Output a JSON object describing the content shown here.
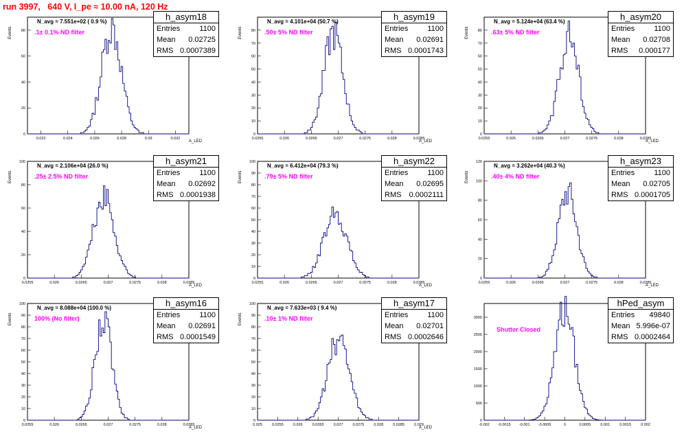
{
  "title": "run 3997,   640 V, I_pe ≈ 10.00 nA, 120 Hz",
  "chart_data": [
    {
      "type": "bar",
      "name": "h_asym18",
      "annotation": "N_avg = 7.551e+02 ( 0.9 %)",
      "label": ".1± 0.1% ND filter",
      "stats": {
        "entries": "1100",
        "mean": "0.02725",
        "rms": "0.0007389"
      },
      "ylabel": "Events",
      "xlabel": "A_LED",
      "xlim": [
        0.021,
        0.033
      ],
      "ylim": [
        0,
        90
      ],
      "xticks": [
        0.022,
        0.024,
        0.026,
        0.028,
        0.03,
        0.032
      ],
      "xtick_labels": [
        "0.022",
        "0.024",
        "0.026",
        "0.028",
        "0.03",
        "0.032"
      ],
      "yticks": [
        0,
        20,
        40,
        60,
        80
      ],
      "mean": 0.02725,
      "rms": 0.0007389,
      "peak": 82,
      "entries": 1100
    },
    {
      "type": "bar",
      "name": "h_asym19",
      "annotation": "N_avg = 4.101e+04 (50.7 %)",
      "label": ".50± 5% ND filter",
      "stats": {
        "entries": "1100",
        "mean": "0.02691",
        "rms": "0.0001743"
      },
      "ylabel": "Events",
      "xlabel": "A_LED",
      "xlim": [
        0.0255,
        0.0285
      ],
      "ylim": [
        0,
        90
      ],
      "xticks": [
        0.0255,
        0.026,
        0.0265,
        0.027,
        0.0275,
        0.028,
        0.0285
      ],
      "xtick_labels": [
        "0.0255",
        "0.026",
        "0.0265",
        "0.027",
        "0.0275",
        "0.028",
        "0.0285"
      ],
      "yticks": [
        0,
        10,
        20,
        30,
        40,
        50,
        60,
        70,
        80
      ],
      "mean": 0.02691,
      "rms": 0.0001743,
      "peak": 79,
      "entries": 1100
    },
    {
      "type": "bar",
      "name": "h_asym20",
      "annotation": "N_avg = 5.124e+04 (63.4 %)",
      "label": ".63± 5% ND filter",
      "stats": {
        "entries": "1100",
        "mean": "0.02708",
        "rms": "0.000177"
      },
      "ylabel": "Events",
      "xlabel": "A_LED",
      "xlim": [
        0.0255,
        0.0285
      ],
      "ylim": [
        0,
        90
      ],
      "xticks": [
        0.0255,
        0.026,
        0.0265,
        0.027,
        0.0275,
        0.028,
        0.0285
      ],
      "xtick_labels": [
        "0.0255",
        "0.026",
        "0.0265",
        "0.027",
        "0.0275",
        "0.028",
        "0.0285"
      ],
      "yticks": [
        0,
        10,
        20,
        30,
        40,
        50,
        60,
        70,
        80
      ],
      "mean": 0.02708,
      "rms": 0.000177,
      "peak": 76,
      "entries": 1100
    },
    {
      "type": "bar",
      "name": "h_asym21",
      "annotation": "N_avg = 2.106e+04 (26.0 %)",
      "label": ".25± 2.5% ND filter",
      "stats": {
        "entries": "1100",
        "mean": "0.02692",
        "rms": "0.0001938"
      },
      "ylabel": "Events",
      "xlabel": "A_LED",
      "xlim": [
        0.0255,
        0.0285
      ],
      "ylim": [
        0,
        100
      ],
      "xticks": [
        0.0255,
        0.026,
        0.0265,
        0.027,
        0.0275,
        0.028,
        0.0285
      ],
      "xtick_labels": [
        "0.0255",
        "0.026",
        "0.0265",
        "0.027",
        "0.0275",
        "0.028",
        "0.0285"
      ],
      "yticks": [
        0,
        20,
        40,
        60,
        80,
        100
      ],
      "mean": 0.02692,
      "rms": 0.0001938,
      "peak": 70,
      "entries": 1100
    },
    {
      "type": "bar",
      "name": "h_asym22",
      "annotation": "N_avg = 6.412e+04 (79.3 %)",
      "label": ".79± 5% ND filter",
      "stats": {
        "entries": "1100",
        "mean": "0.02695",
        "rms": "0.0002111"
      },
      "ylabel": "Events",
      "xlabel": "A_LED",
      "xlim": [
        0.0255,
        0.0285
      ],
      "ylim": [
        0,
        100
      ],
      "xticks": [
        0.0255,
        0.026,
        0.0265,
        0.027,
        0.0275,
        0.028,
        0.0285
      ],
      "xtick_labels": [
        "0.0255",
        "0.026",
        "0.0265",
        "0.027",
        "0.0275",
        "0.028",
        "0.0285"
      ],
      "yticks": [
        0,
        10,
        20,
        30,
        40,
        50,
        60,
        70,
        80,
        90,
        100
      ],
      "mean": 0.02695,
      "rms": 0.0002111,
      "peak": 57,
      "entries": 1100
    },
    {
      "type": "bar",
      "name": "h_asym23",
      "annotation": "N_avg = 3.262e+04 (40.3 %)",
      "label": ".40± 4% ND filter",
      "stats": {
        "entries": "1100",
        "mean": "0.02705",
        "rms": "0.0001705"
      },
      "ylabel": "Events",
      "xlabel": "A_LED",
      "xlim": [
        0.0255,
        0.0285
      ],
      "ylim": [
        0,
        120
      ],
      "xticks": [
        0.0255,
        0.026,
        0.0265,
        0.027,
        0.0275,
        0.028,
        0.0285
      ],
      "xtick_labels": [
        "0.0255",
        "0.026",
        "0.0265",
        "0.027",
        "0.0275",
        "0.028",
        "0.0285"
      ],
      "yticks": [
        0,
        20,
        40,
        60,
        80,
        100,
        120
      ],
      "mean": 0.02705,
      "rms": 0.0001705,
      "peak": 91,
      "entries": 1100
    },
    {
      "type": "bar",
      "name": "h_asym16",
      "annotation": "N_avg = 8.088e+04 (100.0 %)",
      "label": "100% (No filter)",
      "stats": {
        "entries": "1100",
        "mean": "0.02691",
        "rms": "0.0001549"
      },
      "ylabel": "Events",
      "xlabel": "A_LED",
      "xlim": [
        0.0255,
        0.0285
      ],
      "ylim": [
        0,
        100
      ],
      "xticks": [
        0.0255,
        0.026,
        0.0265,
        0.027,
        0.0275,
        0.028,
        0.0285
      ],
      "xtick_labels": [
        "0.0255",
        "0.026",
        "0.0265",
        "0.027",
        "0.0275",
        "0.028",
        "0.0285"
      ],
      "yticks": [
        0,
        10,
        20,
        30,
        40,
        50,
        60,
        70,
        80,
        90,
        100
      ],
      "mean": 0.02691,
      "rms": 0.0001549,
      "peak": 87,
      "entries": 1100
    },
    {
      "type": "bar",
      "name": "h_asym17",
      "annotation": "N_avg = 7.633e+03 ( 9.4 %)",
      "label": ".10± 1% ND filter",
      "stats": {
        "entries": "1100",
        "mean": "0.02701",
        "rms": "0.0002646"
      },
      "ylabel": "Events",
      "xlabel": "A_LED",
      "xlim": [
        0.025,
        0.029
      ],
      "ylim": [
        0,
        100
      ],
      "xticks": [
        0.025,
        0.0255,
        0.026,
        0.0265,
        0.027,
        0.0275,
        0.028,
        0.0285,
        0.029
      ],
      "xtick_labels": [
        "0.025",
        "0.0255",
        "0.026",
        "0.0265",
        "0.027",
        "0.0275",
        "0.028",
        "0.0285",
        "0.029"
      ],
      "yticks": [
        0,
        10,
        20,
        30,
        40,
        50,
        60,
        70,
        80,
        90,
        100
      ],
      "mean": 0.02701,
      "rms": 0.0002646,
      "peak": 70,
      "entries": 1100
    },
    {
      "type": "bar",
      "name": "hPed_asym",
      "annotation": "",
      "label": "Shutter Closed",
      "stats": {
        "entries": "49840",
        "mean": "5.996e-07",
        "rms": "0.0002464"
      },
      "ylabel": "",
      "xlabel": "",
      "xlim": [
        -0.002,
        0.002
      ],
      "ylim": [
        0,
        3400
      ],
      "xticks": [
        -0.002,
        -0.0015,
        -0.001,
        -0.0005,
        0,
        0.0005,
        0.001,
        0.0015,
        0.002
      ],
      "xtick_labels": [
        "-0.002",
        "-0.0015",
        "-0.001",
        "-0.0005",
        "0",
        "0.0005",
        "0.001",
        "0.0015",
        "0.002"
      ],
      "yticks": [
        0,
        500,
        1000,
        1500,
        2000,
        2500,
        3000
      ],
      "mean": 5.996e-07,
      "rms": 0.0002464,
      "peak": 3200,
      "entries": 49840
    }
  ]
}
